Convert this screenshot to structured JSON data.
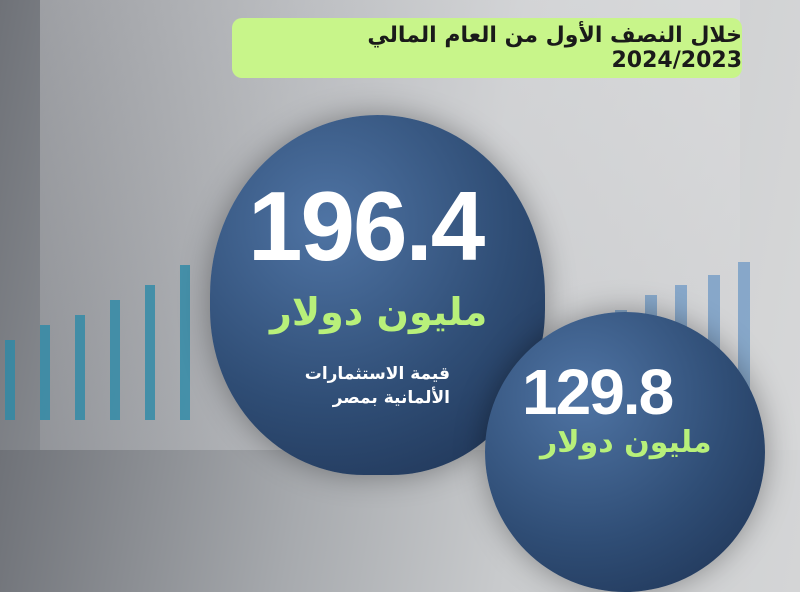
{
  "banner": {
    "text": "خلال النصف الأول من العام المالي 2024/2023",
    "color": "#c8f58a"
  },
  "main_stat": {
    "value": "196.4",
    "unit": "مليون دولار",
    "description_line1": "قيمة الاستثمارات",
    "description_line2": "الألمانية بمصر"
  },
  "secondary_stat": {
    "value": "129.8",
    "unit": "مليون دولار"
  },
  "colors": {
    "circle": "#2f4d75",
    "accent_green": "#b8f07a"
  }
}
